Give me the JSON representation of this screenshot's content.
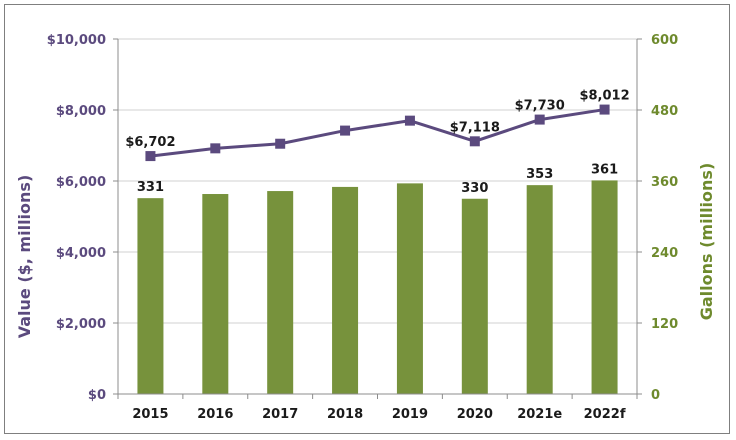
{
  "chart_data": {
    "type": "bar+line",
    "title": "",
    "categories": [
      "2015",
      "2016",
      "2017",
      "2018",
      "2019",
      "2020",
      "2021e",
      "2022f"
    ],
    "y_left": {
      "label": "Value ($, millions)",
      "ylim": [
        0,
        10000
      ],
      "ticks": [
        "$0",
        "$2,000",
        "$4,000",
        "$6,000",
        "$8,000",
        "$10,000"
      ],
      "color": "#5b4a7e"
    },
    "y_right": {
      "label": "Gallons (millions)",
      "ylim": [
        0,
        600
      ],
      "ticks": [
        "0",
        "120",
        "240",
        "360",
        "480",
        "600"
      ],
      "color": "#6e8a2d"
    },
    "series": [
      {
        "type": "line",
        "axis": "left",
        "color": "#5b4a7e",
        "values": [
          6702,
          6920,
          7050,
          7420,
          7700,
          7118,
          7730,
          8012
        ],
        "data_labels": [
          "$6,702",
          "",
          "",
          "",
          "",
          "$7,118",
          "$7,730",
          "$8,012"
        ]
      },
      {
        "type": "bar",
        "axis": "right",
        "color": "#77923c",
        "values": [
          331,
          338,
          343,
          350,
          356,
          330,
          353,
          361
        ],
        "data_labels": [
          "331",
          "",
          "",
          "",
          "",
          "330",
          "353",
          "361"
        ]
      }
    ],
    "grid": "horizontal",
    "legend": "none"
  }
}
